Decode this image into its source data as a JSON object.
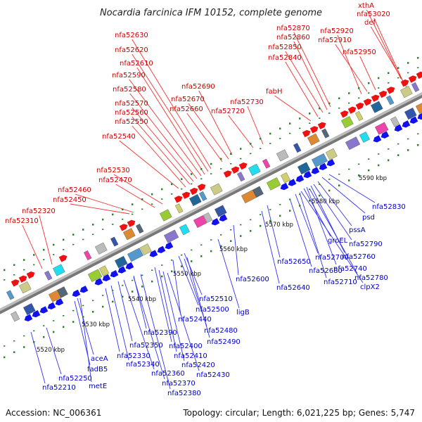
{
  "title": "Nocardia farcinica IFM 10152, complete genome",
  "footer": {
    "accession": "Accession: NC_006361",
    "topology": "Topology: circular; Length: 6,021,225 bp; Genes: 5,747"
  },
  "colors": {
    "forward_arrow": "#ee1111",
    "reverse_arrow": "#1111ee",
    "forward_label": "#cc0000",
    "reverse_label": "#0000cc",
    "backbone": "#9a9a9a",
    "tick_green": "#228822"
  },
  "kbp_labels": [
    "5520 kbp",
    "5530 kbp",
    "5540 kbp",
    "5550 kbp",
    "5560 kbp",
    "5570 kbp",
    "5580 kbp",
    "5590 kbp"
  ],
  "forward_labels": [
    "xthA",
    "nfa53020",
    "def",
    "nfa52870",
    "nfa52860",
    "nfa52850",
    "nfa52840",
    "nfa52920",
    "nfa52910",
    "nfa52950",
    "fabH",
    "nfa52630",
    "nfa52620",
    "nfa52610",
    "nfa52590",
    "nfa52580",
    "nfa52570",
    "nfa52560",
    "nfa52550",
    "nfa52690",
    "nfa52670",
    "nfa52660",
    "nfa52730",
    "nfa52720",
    "nfa52540",
    "nfa52530",
    "nfa52470",
    "nfa52460",
    "nfa52450",
    "nfa52320",
    "nfa52310"
  ],
  "reverse_labels": [
    "nfa52830",
    "psd",
    "pssA",
    "groEL",
    "nfa52790",
    "nfa52760",
    "nfa52740",
    "nfa52780",
    "clpX2",
    "nfa52700",
    "nfa52710",
    "nfa52680",
    "nfa52650",
    "nfa52640",
    "nfa52600",
    "ligB",
    "nfa52510",
    "nfa52500",
    "nfa52440",
    "nfa52480",
    "nfa52490",
    "nfa52390",
    "nfa52400",
    "nfa52410",
    "nfa52420",
    "nfa52430",
    "nfa52350",
    "nfa52330",
    "nfa52340",
    "nfa52360",
    "nfa52370",
    "nfa52380",
    "aceA",
    "fadB5",
    "metE",
    "nfa52250",
    "nfa52210"
  ]
}
